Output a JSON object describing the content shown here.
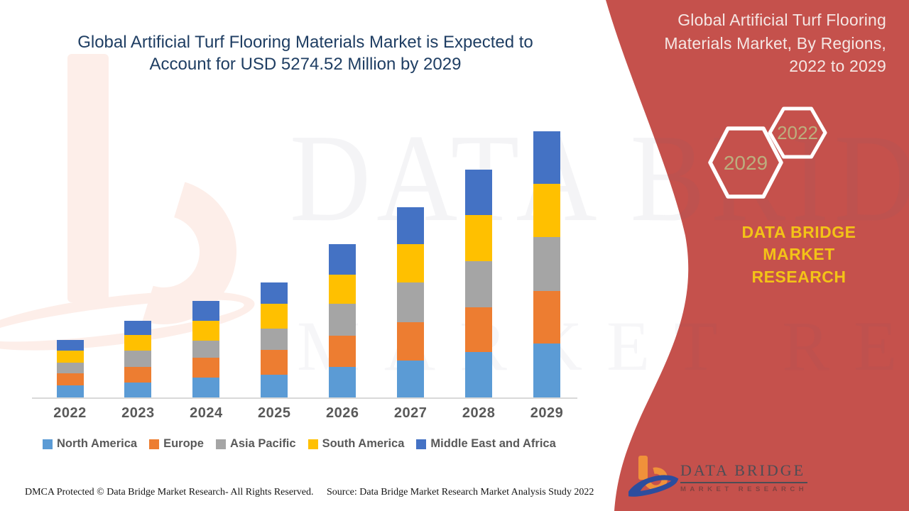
{
  "header": {
    "title": "Global Artificial Turf Flooring Materials Market is Expected to Account for USD 5274.52 Million by 2029",
    "title_lines": [
      "Global Artificial Turf Flooring Materials Market is Expected to",
      "Account for USD 5274.52 Million by 2029"
    ]
  },
  "side_panel": {
    "heading": "Global Artificial Turf Flooring Materials Market, By Regions, 2022 to 2029",
    "heading_lines": [
      "Global Artificial Turf Flooring",
      "Materials Market, By Regions,",
      "2022 to 2029"
    ],
    "hexagon_front_year": "2029",
    "hexagon_back_year": "2022",
    "brand_lines": [
      "DATA BRIDGE MARKET",
      "RESEARCH"
    ],
    "colors": {
      "panel_red": "#c5514c",
      "brand_yellow": "#f3c317",
      "hex_year": "#bcae7e",
      "heading_text": "#f5e7e4"
    }
  },
  "chart_data": {
    "type": "bar",
    "stacked": true,
    "title": "Global Artificial Turf Flooring Materials Market, By Regions, 2022 to 2029 (USD Million)",
    "xlabel": "",
    "ylabel": "",
    "unit": "USD Million",
    "gridlines": false,
    "legend_position": "bottom",
    "ylim": [
      0,
      5500
    ],
    "categories": [
      "2022",
      "2023",
      "2024",
      "2025",
      "2026",
      "2027",
      "2028",
      "2029"
    ],
    "series": [
      {
        "name": "North America",
        "color": "#5B9BD5",
        "values": [
          239,
          295,
          394,
          450,
          605,
          731,
          900,
          1069
        ]
      },
      {
        "name": "Europe",
        "color": "#ED7D31",
        "values": [
          239,
          309,
          394,
          492,
          619,
          759,
          886,
          1041
        ]
      },
      {
        "name": "Asia Pacific",
        "color": "#A5A5A5",
        "values": [
          211,
          323,
          338,
          422,
          633,
          788,
          914,
          1069
        ]
      },
      {
        "name": "South America",
        "color": "#FFC000",
        "values": [
          239,
          309,
          394,
          492,
          577,
          759,
          914,
          1055
        ]
      },
      {
        "name": "Middle East and Africa",
        "color": "#4472C4",
        "values": [
          211,
          281,
          394,
          422,
          605,
          731,
          900,
          1040.52
        ]
      }
    ],
    "totals_note": "2029 total = 5274.52 USD Million (values estimated from bar heights)"
  },
  "watermark": {
    "line1": "DATA BRIDGE",
    "line2": "MARKET RESEARCH"
  },
  "footer": {
    "left": "DMCA Protected © Data Bridge Market Research- All Rights Reserved.",
    "right": "Source: Data Bridge Market Research Market Analysis Study 2022"
  },
  "logo": {
    "name": "DATA BRIDGE",
    "subtitle": "MARKET RESEARCH"
  }
}
